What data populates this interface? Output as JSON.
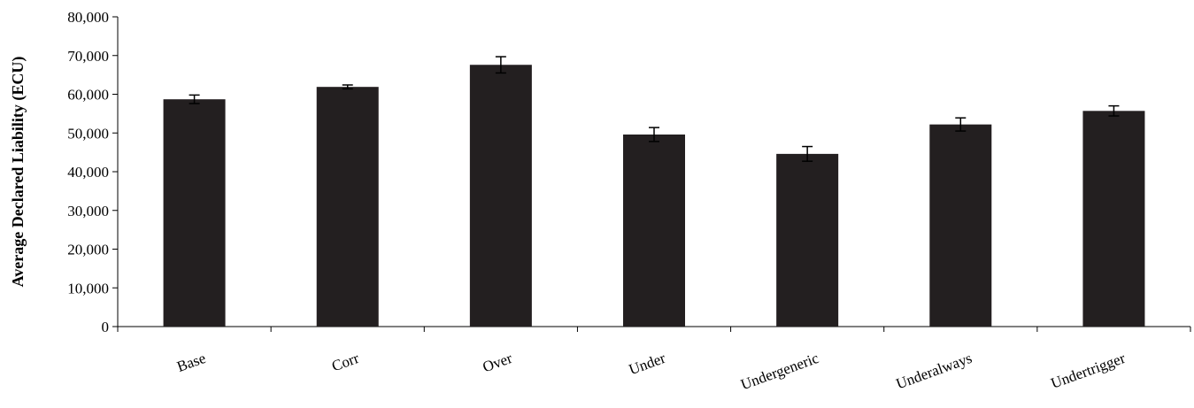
{
  "chart_data": {
    "type": "bar",
    "title": "",
    "xlabel": "",
    "ylabel": "Average Declared Liability (ECU)",
    "categories": [
      "Base",
      "Corr",
      "Over",
      "Under",
      "Undergeneric",
      "Underalways",
      "Undertrigger"
    ],
    "values": [
      58700,
      61900,
      67600,
      49600,
      44600,
      52200,
      55700
    ],
    "error": [
      1100,
      500,
      2100,
      1800,
      1900,
      1700,
      1300
    ],
    "ylim": [
      0,
      80000
    ],
    "yticks": [
      0,
      10000,
      20000,
      30000,
      40000,
      50000,
      60000,
      70000,
      80000
    ],
    "ytick_labels": [
      "0",
      "10,000",
      "20,000",
      "30,000",
      "40,000",
      "50,000",
      "60,000",
      "70,000",
      "80,000"
    ],
    "grid": false,
    "legend": "none",
    "bar_color": "#231f20",
    "errorbar_color": "#000000"
  }
}
